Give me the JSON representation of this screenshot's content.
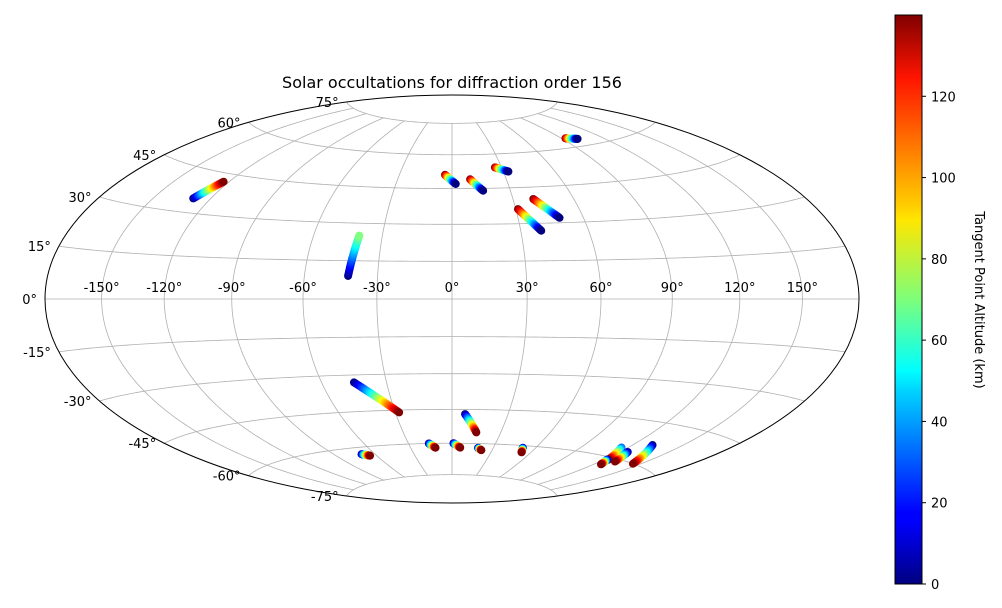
{
  "chart_data": {
    "type": "scatter",
    "projection": "hammer",
    "title": "Solar occultations for diffraction order 156",
    "xlabel": "",
    "ylabel": "",
    "grid": true,
    "longitude_ticks": [
      "-150°",
      "-120°",
      "-90°",
      "-60°",
      "-30°",
      "0°",
      "30°",
      "60°",
      "90°",
      "120°",
      "150°"
    ],
    "latitude_ticks": [
      "75°",
      "60°",
      "45°",
      "30°",
      "15°",
      "0°",
      "-15°",
      "-30°",
      "-45°",
      "-60°",
      "-75°"
    ],
    "colorbar": {
      "label": "Tangent Point Altitude (km)",
      "colormap": "jet",
      "range": [
        0,
        140
      ],
      "ticks": [
        "0",
        "20",
        "40",
        "60",
        "80",
        "100",
        "120"
      ]
    },
    "series": [
      {
        "lon": [
          -129,
          -123
        ],
        "lat": [
          35,
          42
        ],
        "alt_start": 0,
        "alt_end": 140
      },
      {
        "lon": [
          -42,
          -40
        ],
        "lat": [
          9,
          25
        ],
        "alt_start": 0,
        "alt_end": 70
      },
      {
        "lon": [
          -4,
          2
        ],
        "lat": [
          51,
          47
        ],
        "alt_start": 140,
        "alt_end": 0
      },
      {
        "lon": [
          10,
          16
        ],
        "lat": [
          49,
          44
        ],
        "alt_start": 140,
        "alt_end": 0
      },
      {
        "lon": [
          26,
          33
        ],
        "lat": [
          54,
          52
        ],
        "alt_start": 140,
        "alt_end": 0
      },
      {
        "lon": [
          31,
          39
        ],
        "lat": [
          36,
          27
        ],
        "alt_start": 140,
        "alt_end": 0
      },
      {
        "lon": [
          40,
          49
        ],
        "lat": [
          40,
          32
        ],
        "alt_start": 140,
        "alt_end": 0
      },
      {
        "lon": [
          93,
          101
        ],
        "lat": [
          64,
          63
        ],
        "alt_start": 140,
        "alt_end": 0
      },
      {
        "lon": [
          -45,
          -28
        ],
        "lat": [
          -33,
          -46
        ],
        "alt_start": 0,
        "alt_end": 140
      },
      {
        "lon": [
          -70,
          -65
        ],
        "lat": [
          -63,
          -64
        ],
        "alt_start": 0,
        "alt_end": 140
      },
      {
        "lon": [
          -16,
          -12
        ],
        "lat": [
          -60,
          -62
        ],
        "alt_start": 0,
        "alt_end": 140
      },
      {
        "lon": [
          1,
          6
        ],
        "lat": [
          -60,
          -62
        ],
        "alt_start": 0,
        "alt_end": 140
      },
      {
        "lon": [
          7,
          15
        ],
        "lat": [
          -47,
          -55
        ],
        "alt_start": 0,
        "alt_end": 140
      },
      {
        "lon": [
          19,
          22
        ],
        "lat": [
          -62,
          -63
        ],
        "alt_start": 0,
        "alt_end": 140
      },
      {
        "lon": [
          51,
          53
        ],
        "lat": [
          -61,
          -63
        ],
        "alt_start": 0,
        "alt_end": 140
      },
      {
        "lon": [
          116,
          123
        ],
        "lat": [
          -56,
          -61
        ],
        "alt_start": 30,
        "alt_end": 140
      },
      {
        "lon": [
          122,
          125
        ],
        "lat": [
          -61,
          -63
        ],
        "alt_start": 0,
        "alt_end": 140
      },
      {
        "lon": [
          125,
          130
        ],
        "lat": [
          -57,
          -61
        ],
        "alt_start": 0,
        "alt_end": 140
      },
      {
        "lon": [
          132,
          145
        ],
        "lat": [
          -53,
          -60
        ],
        "alt_start": 0,
        "alt_end": 140
      }
    ]
  }
}
